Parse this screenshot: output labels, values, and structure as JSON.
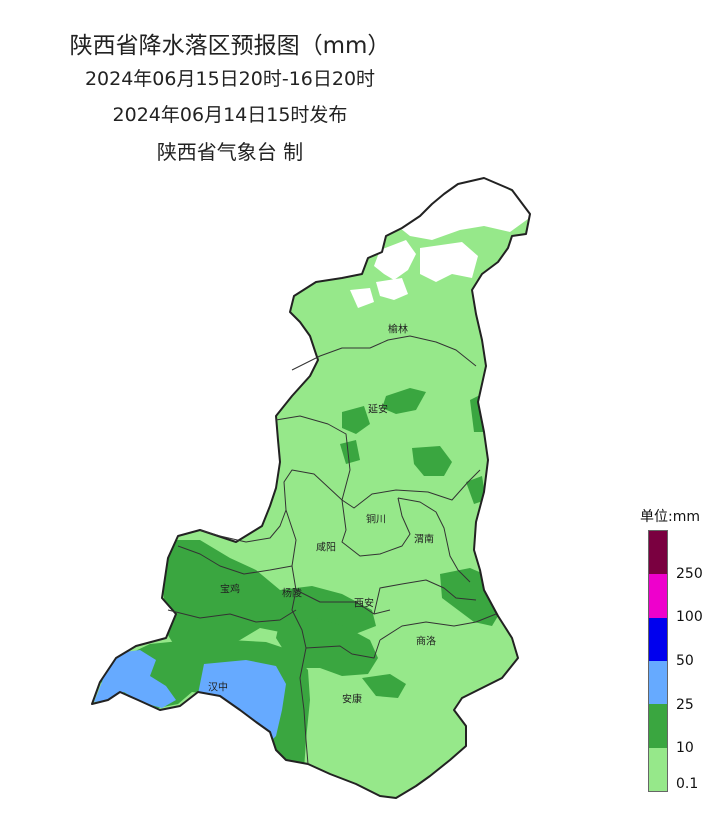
{
  "title": {
    "line1": "陕西省降水落区预报图（mm）",
    "line2": "2024年06月15日20时-16日20时",
    "line3": "2024年06月14日15时发布",
    "line4": "陕西省气象台 制"
  },
  "cities": [
    {
      "key": "yulin",
      "label": "榆林"
    },
    {
      "key": "yanan",
      "label": "延安"
    },
    {
      "key": "tongchuan",
      "label": "铜川"
    },
    {
      "key": "xianyang",
      "label": "咸阳"
    },
    {
      "key": "weinan",
      "label": "渭南"
    },
    {
      "key": "baoji",
      "label": "宝鸡"
    },
    {
      "key": "yangling",
      "label": "杨陵"
    },
    {
      "key": "xian",
      "label": "西安"
    },
    {
      "key": "shangluo",
      "label": "商洛"
    },
    {
      "key": "hanzhong",
      "label": "汉中"
    },
    {
      "key": "ankang",
      "label": "安康"
    }
  ],
  "legend": {
    "title": "单位:mm",
    "levels": [
      {
        "label": "",
        "color": "#7a0040"
      },
      {
        "label": "250",
        "color": "#ee00cc"
      },
      {
        "label": "100",
        "color": "#0000ee"
      },
      {
        "label": "50",
        "color": "#66aaff"
      },
      {
        "label": "25",
        "color": "#3aa640"
      },
      {
        "label": "10",
        "color": "#96e88a"
      },
      {
        "label": "0.1",
        "color": ""
      }
    ]
  },
  "colors": {
    "light_green": "#96e88a",
    "dark_green": "#3aa640",
    "light_blue": "#66aaff",
    "no_rain": "#ffffff",
    "border": "#222222"
  }
}
